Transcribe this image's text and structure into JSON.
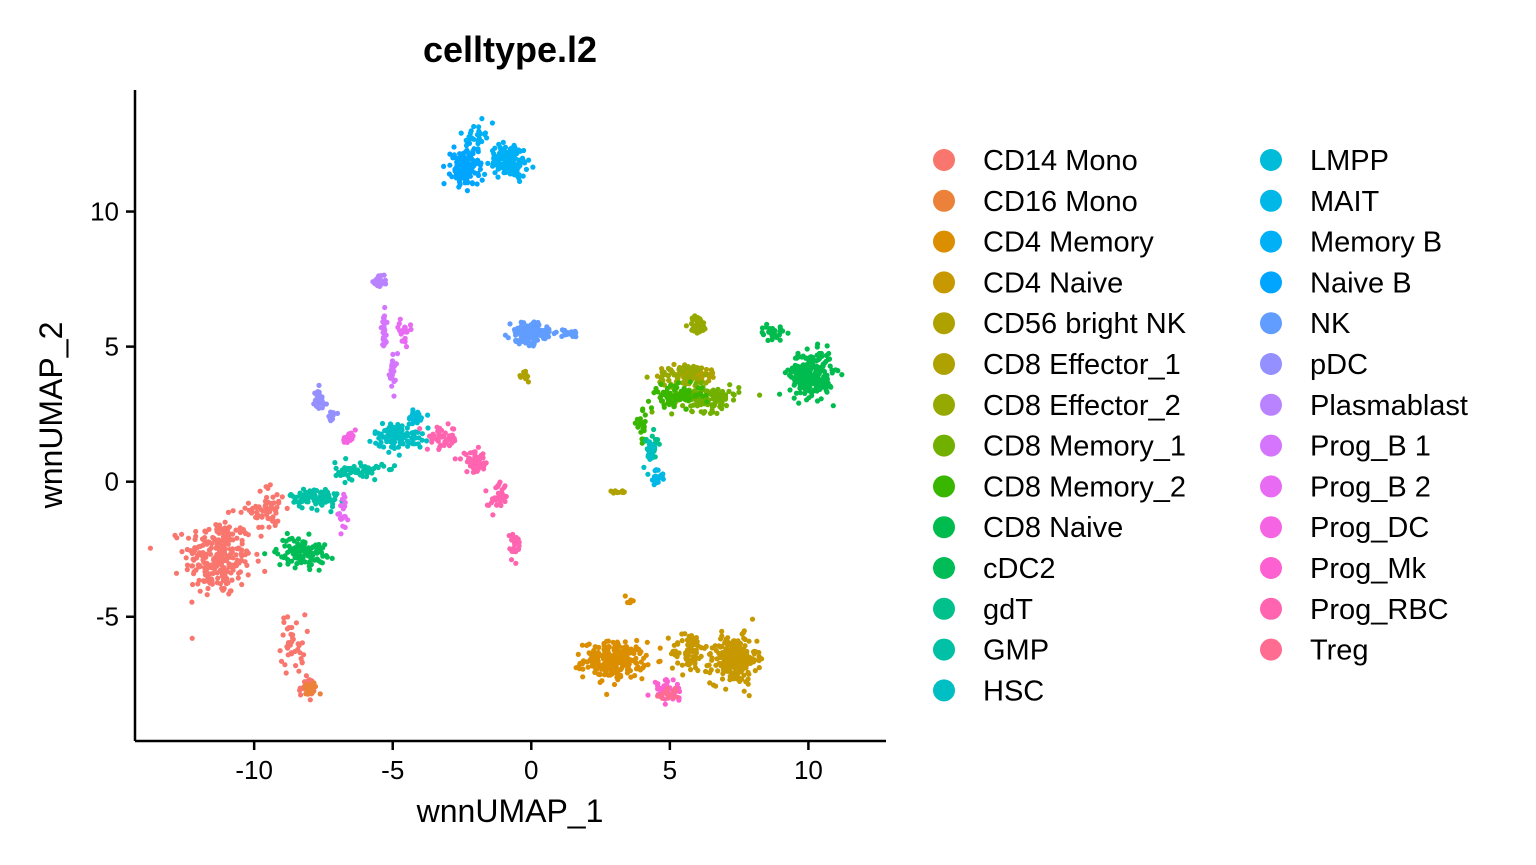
{
  "chart_data": {
    "type": "scatter",
    "title": "celltype.l2",
    "xlabel": "wnnUMAP_1",
    "ylabel": "wnnUMAP_2",
    "xlim": [
      -14.3,
      12.8
    ],
    "ylim": [
      -9.6,
      14.5
    ],
    "x_ticks": [
      {
        "value": -10,
        "label": "-10"
      },
      {
        "value": -5,
        "label": "-5"
      },
      {
        "value": 0,
        "label": "0"
      },
      {
        "value": 5,
        "label": "5"
      },
      {
        "value": 10,
        "label": "10"
      }
    ],
    "y_ticks": [
      {
        "value": -5,
        "label": "-5"
      },
      {
        "value": 0,
        "label": "0"
      },
      {
        "value": 5,
        "label": "5"
      },
      {
        "value": 10,
        "label": "10"
      }
    ],
    "grid": false,
    "legend_position": "right",
    "legend_columns": 2,
    "series": [
      {
        "name": "CD14 Mono",
        "color": "#F8766D",
        "clusters": [
          {
            "x": -11.3,
            "y": -2.8,
            "sx": 1.1,
            "sy": 1.3,
            "n": 260
          },
          {
            "x": -9.5,
            "y": -1.0,
            "sx": 0.6,
            "sy": 0.8,
            "n": 60
          },
          {
            "x": -8.6,
            "y": -6.0,
            "sx": 0.4,
            "sy": 1.0,
            "n": 40
          },
          {
            "x": -8.1,
            "y": -7.6,
            "sx": 0.25,
            "sy": 0.3,
            "n": 30
          }
        ]
      },
      {
        "name": "CD16 Mono",
        "color": "#EC8239",
        "clusters": [
          {
            "x": -8.0,
            "y": -7.7,
            "sx": 0.25,
            "sy": 0.25,
            "n": 25
          }
        ]
      },
      {
        "name": "CD4 Memory",
        "color": "#DB8E00",
        "clusters": [
          {
            "x": 3.0,
            "y": -6.6,
            "sx": 1.0,
            "sy": 0.6,
            "n": 240
          },
          {
            "x": 3.6,
            "y": -4.4,
            "sx": 0.2,
            "sy": 0.2,
            "n": 6
          }
        ]
      },
      {
        "name": "CD4 Naive",
        "color": "#C79800",
        "clusters": [
          {
            "x": 7.3,
            "y": -6.6,
            "sx": 0.75,
            "sy": 0.8,
            "n": 240
          },
          {
            "x": 5.7,
            "y": -6.3,
            "sx": 0.6,
            "sy": 0.7,
            "n": 70
          }
        ]
      },
      {
        "name": "CD56 bright NK",
        "color": "#AFA100",
        "clusters": [
          {
            "x": -0.2,
            "y": 3.9,
            "sx": 0.12,
            "sy": 0.2,
            "n": 15
          },
          {
            "x": 3.2,
            "y": -0.4,
            "sx": 0.25,
            "sy": 0.08,
            "n": 10
          }
        ]
      },
      {
        "name": "CD8 Effector_1",
        "color": "#AFA100",
        "clusters": [
          {
            "x": 5.8,
            "y": 4.0,
            "sx": 1.0,
            "sy": 0.3,
            "n": 60
          }
        ]
      },
      {
        "name": "CD8 Effector_2",
        "color": "#96A900",
        "clusters": [
          {
            "x": 6.0,
            "y": 5.8,
            "sx": 0.3,
            "sy": 0.3,
            "n": 40
          },
          {
            "x": 5.5,
            "y": 3.9,
            "sx": 0.9,
            "sy": 0.4,
            "n": 60
          }
        ]
      },
      {
        "name": "CD8 Memory_1",
        "color": "#72B000",
        "clusters": [
          {
            "x": 6.3,
            "y": 3.1,
            "sx": 1.1,
            "sy": 0.45,
            "n": 130
          }
        ]
      },
      {
        "name": "CD8 Memory_2",
        "color": "#39B600",
        "clusters": [
          {
            "x": 5.2,
            "y": 3.2,
            "sx": 0.9,
            "sy": 0.35,
            "n": 80
          },
          {
            "x": 4.0,
            "y": 2.0,
            "sx": 0.2,
            "sy": 0.5,
            "n": 20
          }
        ]
      },
      {
        "name": "CD8 Naive",
        "color": "#00BB4E",
        "clusters": [
          {
            "x": 10.1,
            "y": 4.0,
            "sx": 0.7,
            "sy": 0.75,
            "n": 260
          },
          {
            "x": 8.7,
            "y": 5.5,
            "sx": 0.4,
            "sy": 0.25,
            "n": 25
          }
        ]
      },
      {
        "name": "cDC2",
        "color": "#00BC56",
        "clusters": [
          {
            "x": -8.3,
            "y": -2.6,
            "sx": 0.8,
            "sy": 0.5,
            "n": 110
          }
        ]
      },
      {
        "name": "gdT",
        "color": "#00C08B",
        "clusters": [
          {
            "x": 4.4,
            "y": 1.3,
            "sx": 0.25,
            "sy": 0.4,
            "n": 20
          }
        ]
      },
      {
        "name": "GMP",
        "color": "#00C0A6",
        "clusters": [
          {
            "x": -7.8,
            "y": -0.6,
            "sx": 0.8,
            "sy": 0.35,
            "n": 90
          },
          {
            "x": -6.2,
            "y": 0.4,
            "sx": 0.8,
            "sy": 0.3,
            "n": 60
          }
        ]
      },
      {
        "name": "HSC",
        "color": "#00BFC4",
        "clusters": [
          {
            "x": -4.8,
            "y": 1.7,
            "sx": 0.8,
            "sy": 0.45,
            "n": 110
          },
          {
            "x": 4.3,
            "y": 1.0,
            "sx": 0.25,
            "sy": 0.5,
            "n": 20
          }
        ]
      },
      {
        "name": "LMPP",
        "color": "#00BCD8",
        "clusters": [
          {
            "x": -4.2,
            "y": 2.4,
            "sx": 0.3,
            "sy": 0.2,
            "n": 40
          }
        ]
      },
      {
        "name": "MAIT",
        "color": "#00B8E7",
        "clusters": [
          {
            "x": 4.6,
            "y": 0.2,
            "sx": 0.2,
            "sy": 0.25,
            "n": 20
          }
        ]
      },
      {
        "name": "Memory B",
        "color": "#00B0F6",
        "clusters": [
          {
            "x": -0.8,
            "y": 11.9,
            "sx": 0.6,
            "sy": 0.55,
            "n": 150
          },
          {
            "x": -2.0,
            "y": 12.8,
            "sx": 0.3,
            "sy": 0.4,
            "n": 30
          }
        ]
      },
      {
        "name": "Naive B",
        "color": "#00A5FF",
        "clusters": [
          {
            "x": -2.4,
            "y": 11.6,
            "sx": 0.45,
            "sy": 0.6,
            "n": 160
          }
        ]
      },
      {
        "name": "NK",
        "color": "#619CFF",
        "clusters": [
          {
            "x": -0.1,
            "y": 5.5,
            "sx": 0.6,
            "sy": 0.35,
            "n": 140
          },
          {
            "x": 1.4,
            "y": 5.5,
            "sx": 0.5,
            "sy": 0.12,
            "n": 25
          }
        ]
      },
      {
        "name": "pDC",
        "color": "#9590FF",
        "clusters": [
          {
            "x": -7.7,
            "y": 3.0,
            "sx": 0.25,
            "sy": 0.4,
            "n": 40
          },
          {
            "x": -7.2,
            "y": 2.4,
            "sx": 0.2,
            "sy": 0.2,
            "n": 10
          }
        ]
      },
      {
        "name": "Plasmablast",
        "color": "#B983FF",
        "clusters": [
          {
            "x": -5.5,
            "y": 7.4,
            "sx": 0.18,
            "sy": 0.2,
            "n": 45
          }
        ]
      },
      {
        "name": "Prog_B 1",
        "color": "#D575FE",
        "clusters": [
          {
            "x": -5.3,
            "y": 5.6,
            "sx": 0.1,
            "sy": 0.6,
            "n": 25
          },
          {
            "x": -5.0,
            "y": 4.0,
            "sx": 0.15,
            "sy": 0.7,
            "n": 25
          }
        ]
      },
      {
        "name": "Prog_B 2",
        "color": "#E76BF3",
        "clusters": [
          {
            "x": -4.6,
            "y": 5.6,
            "sx": 0.2,
            "sy": 0.35,
            "n": 20
          },
          {
            "x": -6.8,
            "y": -1.2,
            "sx": 0.15,
            "sy": 0.5,
            "n": 20
          }
        ]
      },
      {
        "name": "Prog_DC",
        "color": "#F564E3",
        "clusters": [
          {
            "x": -6.6,
            "y": 1.6,
            "sx": 0.25,
            "sy": 0.2,
            "n": 20
          }
        ]
      },
      {
        "name": "Prog_Mk",
        "color": "#FD61D1",
        "clusters": [
          {
            "x": 4.9,
            "y": -7.7,
            "sx": 0.5,
            "sy": 0.35,
            "n": 40
          }
        ]
      },
      {
        "name": "Prog_RBC",
        "color": "#FF64B0",
        "clusters": [
          {
            "x": -3.2,
            "y": 1.6,
            "sx": 0.5,
            "sy": 0.4,
            "n": 50
          },
          {
            "x": -2.0,
            "y": 0.7,
            "sx": 0.45,
            "sy": 0.35,
            "n": 50
          },
          {
            "x": -1.2,
            "y": -0.6,
            "sx": 0.3,
            "sy": 0.5,
            "n": 35
          },
          {
            "x": -0.6,
            "y": -2.3,
            "sx": 0.2,
            "sy": 0.5,
            "n": 25
          }
        ]
      },
      {
        "name": "Treg",
        "color": "#FF6C91",
        "clusters": [
          {
            "x": 5.0,
            "y": -7.9,
            "sx": 0.4,
            "sy": 0.25,
            "n": 20
          }
        ]
      }
    ]
  }
}
